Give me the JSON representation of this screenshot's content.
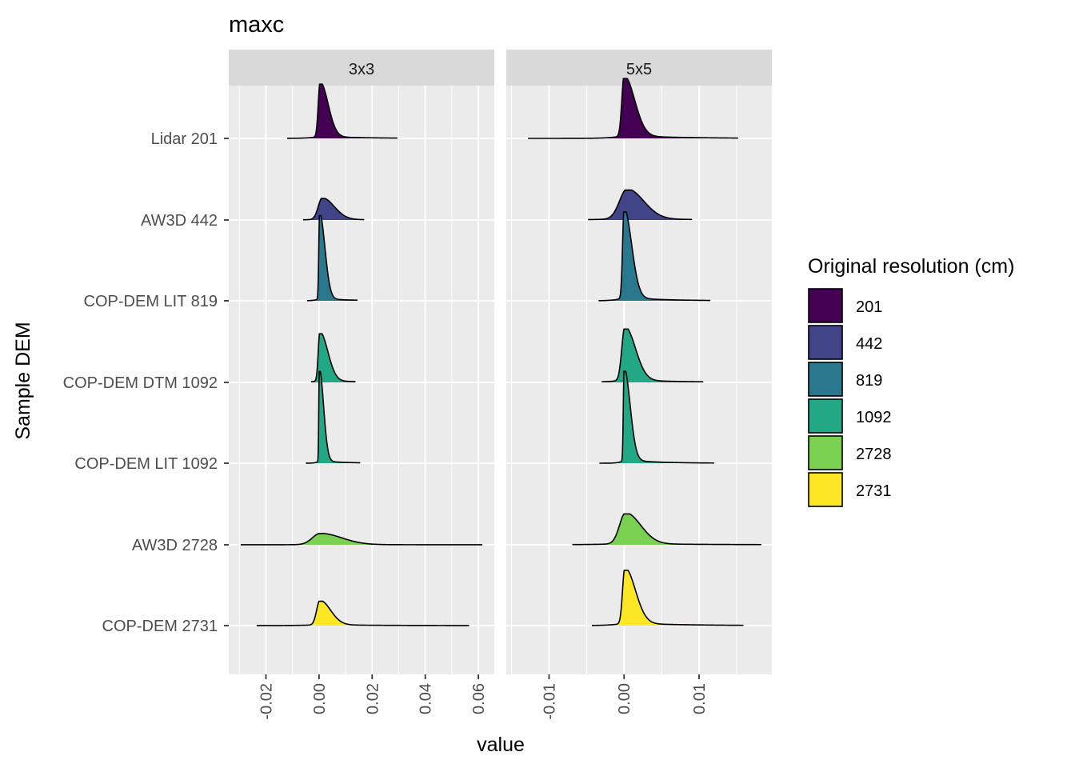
{
  "chart_data": {
    "type": "ridgeline",
    "title": "maxc",
    "xlabel": "value",
    "ylabel": "Sample DEM",
    "categories": [
      "Lidar 201",
      "AW3D 442",
      "COP-DEM LIT 819",
      "COP-DEM DTM 1092",
      "COP-DEM LIT 1092",
      "AW3D 2728",
      "COP-DEM 2731"
    ],
    "legend": {
      "title": "Original resolution (cm)",
      "position": "right",
      "items": [
        {
          "label": "201",
          "color": "#440154"
        },
        {
          "label": "442",
          "color": "#414487"
        },
        {
          "label": "819",
          "color": "#2A788E"
        },
        {
          "label": "1092",
          "color": "#22A884"
        },
        {
          "label": "2728",
          "color": "#7AD151"
        },
        {
          "label": "2731",
          "color": "#FDE725"
        }
      ]
    },
    "panels": [
      {
        "label": "3x3",
        "xlim": [
          -0.034,
          0.066
        ],
        "xticks": [
          -0.02,
          0.0,
          0.02,
          0.04,
          0.06
        ],
        "xtick_labels": [
          "-0.02",
          "0.00",
          "0.02",
          "0.04",
          "0.06"
        ],
        "series": [
          {
            "name": "Lidar 201",
            "fill": "#440154",
            "min": -0.012,
            "max": 0.0295,
            "mode": 0.0004,
            "peak": 0.58,
            "left_sd": 0.0007,
            "right_sd": 0.003,
            "tail_frac": 0.04
          },
          {
            "name": "AW3D 442",
            "fill": "#414487",
            "min": -0.006,
            "max": 0.017,
            "mode": 0.0012,
            "peak": 0.23,
            "left_sd": 0.0015,
            "right_sd": 0.0045,
            "tail_frac": 0.03
          },
          {
            "name": "COP-DEM LIT 819",
            "fill": "#2A788E",
            "min": -0.0045,
            "max": 0.0145,
            "mode": 0.0002,
            "peak": 0.91,
            "left_sd": 0.0003,
            "right_sd": 0.002,
            "tail_frac": 0.03
          },
          {
            "name": "COP-DEM DTM 1092",
            "fill": "#22A884",
            "min": -0.003,
            "max": 0.0135,
            "mode": 0.0003,
            "peak": 0.52,
            "left_sd": 0.0006,
            "right_sd": 0.003,
            "tail_frac": 0.04
          },
          {
            "name": "COP-DEM LIT 1092",
            "fill": "#22A884",
            "min": -0.005,
            "max": 0.0155,
            "mode": 0.0001,
            "peak": 0.98,
            "left_sd": 0.0002,
            "right_sd": 0.0016,
            "tail_frac": 0.03
          },
          {
            "name": "AW3D 2728",
            "fill": "#7AD151",
            "min": -0.0295,
            "max": 0.0615,
            "mode": 0.0005,
            "peak": 0.12,
            "left_sd": 0.003,
            "right_sd": 0.008,
            "tail_frac": 0.02
          },
          {
            "name": "COP-DEM 2731",
            "fill": "#FDE725",
            "min": -0.0235,
            "max": 0.0565,
            "mode": 0.0003,
            "peak": 0.26,
            "left_sd": 0.0012,
            "right_sd": 0.004,
            "tail_frac": 0.04
          }
        ]
      },
      {
        "label": "5x5",
        "xlim": [
          -0.0157,
          0.0197
        ],
        "xticks": [
          -0.01,
          0.0,
          0.01
        ],
        "xtick_labels": [
          "-0.01",
          "0.00",
          "0.01"
        ],
        "series": [
          {
            "name": "Lidar 201",
            "fill": "#440154",
            "min": -0.0128,
            "max": 0.0152,
            "mode": 0.0,
            "peak": 0.64,
            "left_sd": 0.0003,
            "right_sd": 0.0014,
            "tail_frac": 0.05
          },
          {
            "name": "AW3D 442",
            "fill": "#414487",
            "min": -0.0048,
            "max": 0.009,
            "mode": 0.0004,
            "peak": 0.32,
            "left_sd": 0.001,
            "right_sd": 0.0022,
            "tail_frac": 0.04
          },
          {
            "name": "COP-DEM LIT 819",
            "fill": "#2A788E",
            "min": -0.0034,
            "max": 0.0115,
            "mode": 0.0,
            "peak": 0.95,
            "left_sd": 0.0002,
            "right_sd": 0.001,
            "tail_frac": 0.04
          },
          {
            "name": "COP-DEM DTM 1092",
            "fill": "#22A884",
            "min": -0.003,
            "max": 0.0105,
            "mode": 0.0001,
            "peak": 0.57,
            "left_sd": 0.0004,
            "right_sd": 0.0014,
            "tail_frac": 0.05
          },
          {
            "name": "COP-DEM LIT 1092",
            "fill": "#22A884",
            "min": -0.0033,
            "max": 0.012,
            "mode": 0.0,
            "peak": 0.98,
            "left_sd": 0.0001,
            "right_sd": 0.0008,
            "tail_frac": 0.04
          },
          {
            "name": "AW3D 2728",
            "fill": "#7AD151",
            "min": -0.0069,
            "max": 0.0183,
            "mode": 0.0002,
            "peak": 0.33,
            "left_sd": 0.0008,
            "right_sd": 0.002,
            "tail_frac": 0.04
          },
          {
            "name": "COP-DEM 2731",
            "fill": "#FDE725",
            "min": -0.0043,
            "max": 0.0159,
            "mode": 0.0001,
            "peak": 0.59,
            "left_sd": 0.0003,
            "right_sd": 0.0014,
            "tail_frac": 0.05
          }
        ]
      }
    ],
    "grid": true
  }
}
